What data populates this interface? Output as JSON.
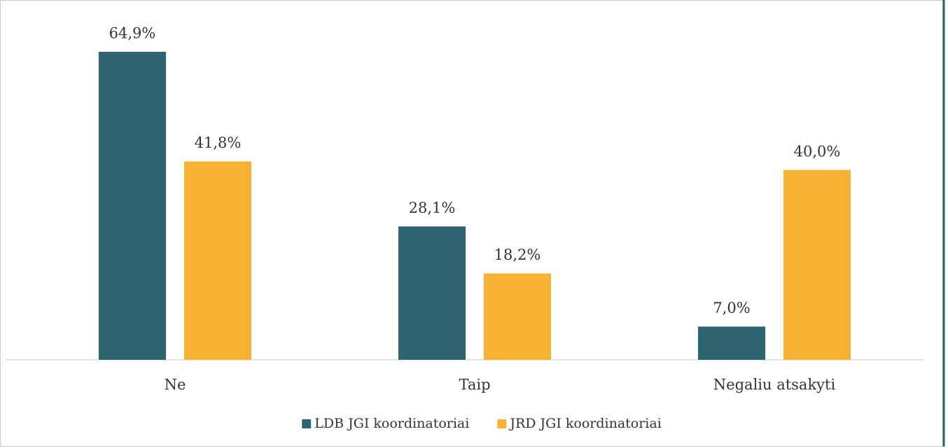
{
  "chart_data": {
    "type": "bar",
    "categories": [
      "Ne",
      "Taip",
      "Negaliu atsakyti"
    ],
    "series": [
      {
        "name": "LDB JGI koordinatoriai",
        "color": "#2e6471",
        "values": [
          64.9,
          28.1,
          7.0
        ],
        "value_labels": [
          "64,9%",
          "28,1%",
          "7,0%"
        ]
      },
      {
        "name": "JRD JGI koordinatoriai",
        "color": "#f8b133",
        "values": [
          41.8,
          18.2,
          40.0
        ],
        "value_labels": [
          "41,8%",
          "18,2%",
          "40,0%"
        ]
      }
    ]
  }
}
